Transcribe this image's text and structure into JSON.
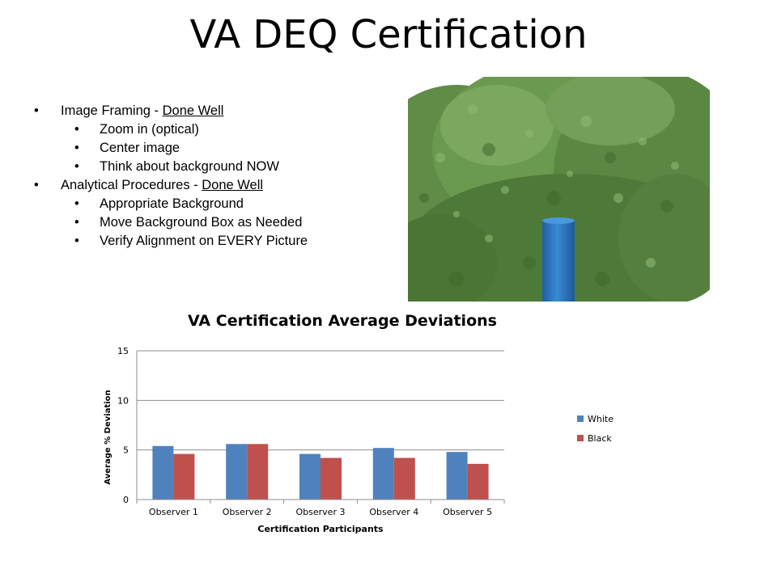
{
  "slide": {
    "title": "VA DEQ Certification"
  },
  "bullets": [
    {
      "level": 1,
      "text": "Image Framing  - ",
      "underlined": "Done Well"
    },
    {
      "level": 2,
      "text": "Zoom in (optical)"
    },
    {
      "level": 2,
      "text": "Center image"
    },
    {
      "level": 2,
      "text": "Think about background NOW"
    },
    {
      "level": 1,
      "text": "Analytical Procedures - ",
      "underlined": "Done Well"
    },
    {
      "level": 2,
      "text": "Appropriate Background"
    },
    {
      "level": 2,
      "text": "Move Background Box as Needed"
    },
    {
      "level": 2,
      "text": "Verify Alignment on EVERY Picture"
    }
  ],
  "bullet_glyph": "•",
  "photo": {
    "subject": "blue smokestack in front of green trees",
    "colors": {
      "foliage": "#5e8a45",
      "stack": "#2d79c4",
      "sky": "#ffffff"
    }
  },
  "chart_data": {
    "type": "bar",
    "title": "VA Certification Average Deviations",
    "xlabel": "Certification Participants",
    "ylabel": "Average % Deviation",
    "ylim": [
      0,
      15
    ],
    "yticks": [
      0,
      5,
      10,
      15
    ],
    "categories": [
      "Observer 1",
      "Observer 2",
      "Observer 3",
      "Observer 4",
      "Observer 5"
    ],
    "series": [
      {
        "name": "White",
        "color": "#4f81bd",
        "values": [
          5.4,
          5.6,
          4.6,
          5.2,
          4.8
        ]
      },
      {
        "name": "Black",
        "color": "#c0504d",
        "values": [
          4.6,
          5.6,
          4.2,
          4.2,
          3.6
        ]
      }
    ],
    "grid": true,
    "legend": "right"
  }
}
